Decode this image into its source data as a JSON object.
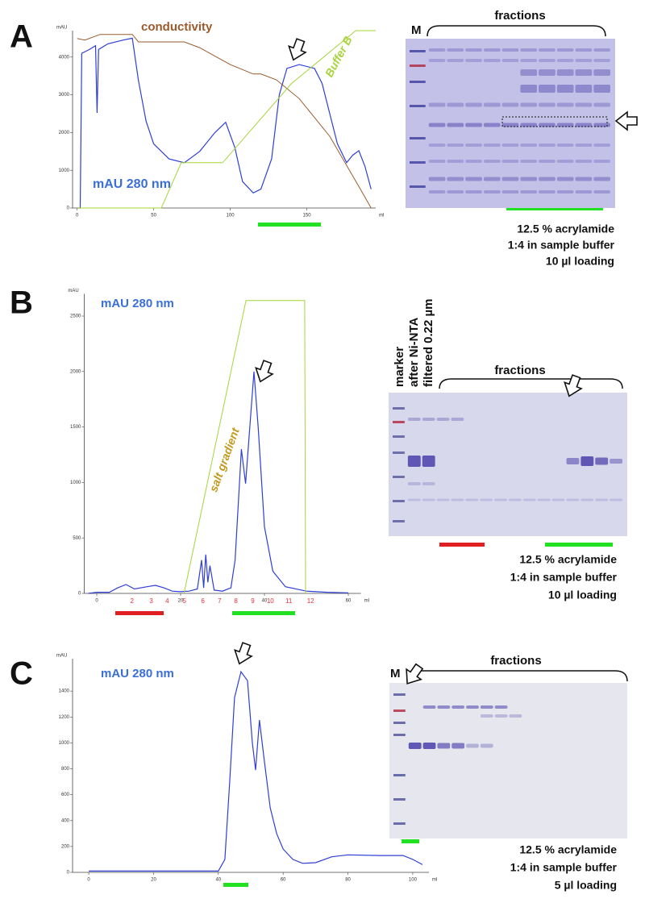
{
  "panels": [
    {
      "label": "A",
      "gel": {
        "lane_header": "M",
        "group_label": "fractions",
        "notes": [
          "12.5 % acrylamide",
          "1:4 in sample buffer",
          "10 µl loading"
        ]
      }
    },
    {
      "label": "B",
      "gel": {
        "lane_labels": [
          "marker",
          "after Ni-NTA",
          "filtered 0.22 µm"
        ],
        "group_label": "fractions",
        "notes": [
          "12.5 % acrylamide",
          "1:4 in sample buffer",
          "10 µl loading"
        ]
      }
    },
    {
      "label": "C",
      "gel": {
        "lane_header": "M",
        "group_label": "fractions",
        "notes": [
          "12.5 % acrylamide",
          "1:4 in sample buffer",
          "5 µl loading"
        ]
      }
    }
  ],
  "chart_data": [
    {
      "type": "line",
      "x_label": "ml",
      "y_label": "mAU",
      "xlim": [
        -3,
        195
      ],
      "ylim": [
        0,
        4700
      ],
      "xticks": [
        0,
        50,
        100,
        150
      ],
      "yticks": [
        0,
        1000,
        2000,
        3000,
        4000
      ],
      "series": [
        {
          "name": "mAU 280 nm",
          "color": "#2f3fd6",
          "x": [
            0,
            2,
            3,
            8,
            12,
            13,
            14,
            20,
            30,
            36,
            40,
            45,
            50,
            60,
            70,
            80,
            90,
            97,
            103,
            108,
            115,
            120,
            127,
            132,
            137,
            145,
            155,
            160,
            165,
            170,
            176,
            180,
            184,
            188,
            192
          ],
          "values": [
            0,
            0,
            4100,
            4200,
            4300,
            2520,
            4200,
            4350,
            4450,
            4500,
            3380,
            2300,
            1700,
            1300,
            1200,
            1500,
            2000,
            2270,
            1600,
            700,
            400,
            500,
            1300,
            3000,
            3700,
            3800,
            3700,
            3300,
            2500,
            1700,
            1200,
            1400,
            1520,
            1100,
            500
          ]
        },
        {
          "name": "conductivity",
          "color": "#9c5a2c",
          "x": [
            0,
            5,
            15,
            36,
            40,
            70,
            80,
            100,
            115,
            120,
            130,
            145,
            165,
            185,
            192
          ],
          "values": [
            4490,
            4450,
            4600,
            4600,
            4400,
            4400,
            4250,
            3800,
            3550,
            3550,
            3400,
            2900,
            1900,
            500,
            0
          ]
        },
        {
          "name": "Buffer B",
          "color": "#a6d43a",
          "x": [
            0,
            55,
            68,
            95,
            140,
            182,
            195
          ],
          "values": [
            0,
            0,
            1200,
            1200,
            3300,
            4700,
            4700
          ]
        }
      ]
    },
    {
      "type": "line",
      "x_label": "ml",
      "y_label": "mAU",
      "xlim": [
        -3,
        63
      ],
      "ylim": [
        0,
        2700
      ],
      "xticks": [
        0,
        20,
        40,
        60
      ],
      "yticks": [
        0,
        500,
        1000,
        1500,
        2000,
        2500
      ],
      "fraction_labels": {
        "x": [
          8.4,
          13.0,
          16.8,
          20.9,
          25.3,
          29.3,
          33.2,
          37.2,
          41.4,
          45.8,
          51.0
        ],
        "labels": [
          "2",
          "3",
          "4",
          "5",
          "6",
          "7",
          "8",
          "9",
          "10",
          "11",
          "12"
        ]
      },
      "series": [
        {
          "name": "mAU 280 nm",
          "color": "#2f3fd6",
          "x": [
            -2,
            0,
            3,
            5,
            7,
            9,
            12,
            14,
            16,
            18,
            20,
            22,
            24,
            25,
            25.5,
            26,
            26.5,
            27,
            28,
            30,
            32,
            33,
            34.5,
            35.5,
            37.5,
            38.5,
            40,
            42,
            45,
            50,
            55,
            60
          ],
          "values": [
            0,
            10,
            10,
            50,
            80,
            40,
            60,
            73,
            50,
            20,
            15,
            20,
            40,
            300,
            50,
            350,
            100,
            250,
            30,
            20,
            50,
            300,
            1300,
            990,
            2000,
            1500,
            600,
            200,
            60,
            20,
            10,
            5
          ]
        },
        {
          "name": "salt gradient",
          "color": "#a6d43a",
          "x": [
            20.8,
            35.6,
            49.6,
            49.8
          ],
          "values": [
            0,
            2640,
            2640,
            0
          ]
        }
      ]
    },
    {
      "type": "line",
      "x_label": "ml",
      "y_label": "mAU",
      "xlim": [
        -5,
        105
      ],
      "ylim": [
        0,
        1650
      ],
      "xticks": [
        0,
        20,
        40,
        60,
        80,
        100
      ],
      "yticks": [
        0,
        200,
        400,
        600,
        800,
        1000,
        1200,
        1400
      ],
      "series": [
        {
          "name": "mAU 280 nm",
          "color": "#2f3fd6",
          "x": [
            0,
            40,
            42,
            43.5,
            45,
            47,
            49,
            50.5,
            51.5,
            52.7,
            54,
            56,
            58,
            60,
            63,
            66,
            70,
            75,
            80,
            90,
            97,
            100,
            103
          ],
          "values": [
            10,
            10,
            100,
            700,
            1350,
            1550,
            1480,
            1000,
            790,
            1176,
            900,
            500,
            300,
            180,
            100,
            70,
            75,
            120,
            135,
            130,
            130,
            100,
            60
          ]
        }
      ]
    }
  ]
}
